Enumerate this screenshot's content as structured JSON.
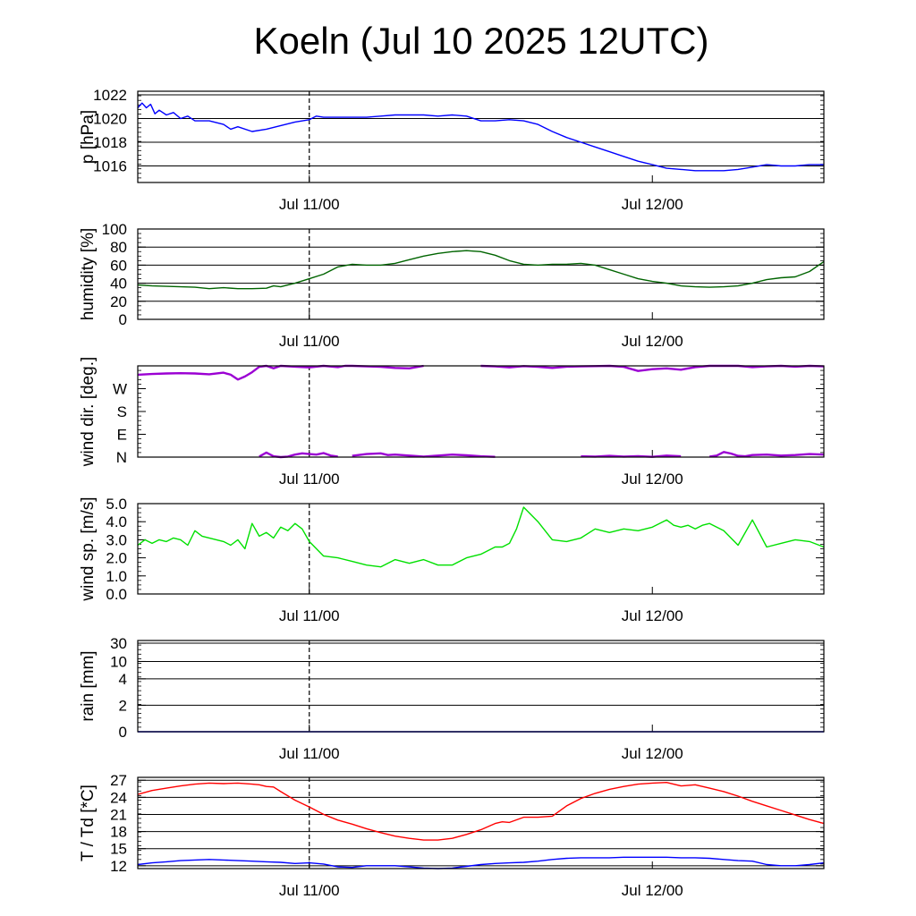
{
  "title": "Koeln (Jul 10 2025 12UTC)",
  "x_ticks": [
    "Jul 11/00",
    "Jul 12/00"
  ],
  "chart_data": [
    {
      "type": "line",
      "id": "pressure",
      "ylabel": "p [hPa]",
      "ylim": [
        1014.6,
        1022.3
      ],
      "yticks": [
        1016,
        1018,
        1020,
        1022
      ],
      "ytick_labels": [
        "1016",
        "1018",
        "1020",
        "1022"
      ],
      "grid": true,
      "xlim_hours": [
        12,
        60
      ],
      "xtick_hours": [
        24,
        48
      ],
      "xtick_labels": [
        "Jul 11/00",
        "Jul 12/00"
      ],
      "series": [
        {
          "color": "#0000ff",
          "x": [
            12,
            12.3,
            12.6,
            12.9,
            13.2,
            13.5,
            14,
            14.5,
            15,
            15.5,
            16,
            17,
            18,
            18.5,
            19,
            20,
            21,
            22,
            23,
            24,
            24.5,
            25,
            26,
            27,
            28,
            29,
            30,
            31,
            32,
            33,
            34,
            35,
            36,
            37,
            38,
            39,
            40,
            41,
            42,
            43,
            44,
            45,
            46,
            47,
            48,
            49,
            50,
            51,
            52,
            53,
            54,
            55,
            56,
            57,
            58,
            59,
            60
          ],
          "y": [
            1020.9,
            1021.3,
            1020.9,
            1021.2,
            1020.4,
            1020.7,
            1020.3,
            1020.5,
            1020.0,
            1020.2,
            1019.8,
            1019.8,
            1019.5,
            1019.1,
            1019.3,
            1018.9,
            1019.1,
            1019.4,
            1019.7,
            1019.9,
            1020.2,
            1020.1,
            1020.1,
            1020.1,
            1020.1,
            1020.2,
            1020.3,
            1020.3,
            1020.3,
            1020.2,
            1020.3,
            1020.2,
            1019.8,
            1019.8,
            1019.9,
            1019.8,
            1019.5,
            1018.9,
            1018.4,
            1018.0,
            1017.6,
            1017.2,
            1016.8,
            1016.4,
            1016.1,
            1015.8,
            1015.7,
            1015.6,
            1015.6,
            1015.6,
            1015.7,
            1015.9,
            1016.1,
            1016.0,
            1016.0,
            1016.1,
            1016.1
          ]
        }
      ]
    },
    {
      "type": "line",
      "id": "humidity",
      "ylabel": "humidity [%]",
      "ylim": [
        0,
        100
      ],
      "yticks": [
        0,
        20,
        40,
        60,
        80,
        100
      ],
      "ytick_labels": [
        "0",
        "20",
        "40",
        "60",
        "80",
        "100"
      ],
      "grid": true,
      "xlim_hours": [
        12,
        60
      ],
      "xtick_hours": [
        24,
        48
      ],
      "xtick_labels": [
        "Jul 11/00",
        "Jul 12/00"
      ],
      "series": [
        {
          "color": "#006400",
          "x": [
            12,
            13,
            14,
            15,
            16,
            17,
            18,
            19,
            20,
            21,
            21.5,
            22,
            23,
            24,
            25,
            26,
            27,
            28,
            29,
            30,
            31,
            32,
            33,
            34,
            35,
            36,
            37,
            38,
            39,
            40,
            41,
            42,
            43,
            44,
            45,
            46,
            47,
            48,
            49,
            50,
            51,
            52,
            53,
            54,
            55,
            56,
            57,
            58,
            59,
            60
          ],
          "y": [
            38,
            37,
            36.5,
            36,
            35.5,
            34,
            35,
            34,
            34,
            34.5,
            37,
            36,
            40,
            45,
            50,
            58,
            61,
            60,
            60,
            62,
            66,
            70,
            73,
            75,
            76,
            75,
            71,
            65,
            61,
            60,
            61,
            61,
            62,
            60,
            55,
            50,
            45,
            42,
            40,
            37,
            36,
            35.5,
            36,
            37,
            40,
            44,
            46,
            47,
            53,
            64
          ]
        }
      ]
    },
    {
      "type": "scatter",
      "id": "wind_direction",
      "ylabel": "wind dir. [deg.]",
      "ylim": [
        0,
        360
      ],
      "yticks": [
        0,
        90,
        180,
        270
      ],
      "ytick_labels": [
        "N",
        "E",
        "S",
        "W"
      ],
      "grid": false,
      "xlim_hours": [
        12,
        60
      ],
      "xtick_hours": [
        24,
        48
      ],
      "xtick_labels": [
        "Jul 11/00",
        "Jul 12/00"
      ],
      "series": [
        {
          "color": "#9b00d3",
          "segments": [
            {
              "x": [
                12,
                13,
                14,
                15,
                16,
                17,
                18,
                18.5,
                19,
                19.5,
                20,
                20.5,
                21,
                21.5,
                22,
                23,
                24,
                25,
                26,
                26.5,
                27,
                28,
                29,
                30,
                31,
                32
              ],
              "y": [
                325,
                328,
                330,
                331,
                330,
                327,
                333,
                325,
                306,
                318,
                335,
                356,
                360,
                350,
                360,
                357,
                354,
                360,
                355,
                362,
                360,
                358,
                356,
                352,
                350,
                360
              ]
            },
            {
              "x": [
                20.5,
                21,
                21.5,
                22,
                22.5,
                23,
                23.5,
                24,
                24.5,
                25,
                25.5,
                26
              ],
              "y": [
                2,
                18,
                3,
                0,
                2,
                10,
                15,
                12,
                10,
                16,
                6,
                2
              ]
            },
            {
              "x": [
                27,
                28,
                29,
                29.5,
                30,
                31,
                32,
                33,
                34,
                35,
                36,
                37
              ],
              "y": [
                5,
                12,
                15,
                8,
                10,
                6,
                2,
                6,
                10,
                7,
                3,
                1
              ]
            },
            {
              "x": [
                36,
                37,
                38,
                39,
                40,
                41,
                42,
                43,
                44,
                45,
                46,
                47,
                48,
                49,
                50,
                51,
                52,
                53,
                54,
                55,
                56,
                57,
                58,
                59,
                60
              ],
              "y": [
                360,
                358,
                354,
                359,
                356,
                352,
                357,
                358,
                359,
                360,
                356,
                340,
                347,
                350,
                345,
                355,
                360,
                360,
                360,
                355,
                358,
                360,
                357,
                360,
                358
              ]
            },
            {
              "x": [
                43,
                44,
                45,
                46,
                47,
                48,
                49,
                50
              ],
              "y": [
                3,
                2,
                5,
                2,
                4,
                1,
                6,
                3
              ]
            },
            {
              "x": [
                52,
                52.5,
                53,
                53.5,
                54,
                54.5,
                55,
                56,
                57,
                58,
                59,
                60
              ],
              "y": [
                2,
                6,
                20,
                14,
                5,
                3,
                8,
                10,
                6,
                8,
                12,
                10
              ]
            }
          ]
        }
      ]
    },
    {
      "type": "line",
      "id": "wind_speed",
      "ylabel": "wind sp. [m/s]",
      "ylim": [
        0,
        5
      ],
      "yticks": [
        0,
        1,
        2,
        3,
        4,
        5
      ],
      "ytick_labels": [
        "0.0",
        "1.0",
        "2.0",
        "3.0",
        "4.0",
        "5.0"
      ],
      "grid": false,
      "xlim_hours": [
        12,
        60
      ],
      "xtick_hours": [
        24,
        48
      ],
      "xtick_labels": [
        "Jul 11/00",
        "Jul 12/00"
      ],
      "series": [
        {
          "color": "#00e000",
          "x": [
            12,
            12.5,
            13,
            13.5,
            14,
            14.5,
            15,
            15.5,
            16,
            16.5,
            17,
            17.5,
            18,
            18.5,
            19,
            19.5,
            20,
            20.5,
            21,
            21.5,
            22,
            22.5,
            23,
            23.5,
            24,
            25,
            26,
            27,
            28,
            29,
            30,
            31,
            32,
            33,
            34,
            35,
            36,
            37,
            37.5,
            38,
            38.5,
            39,
            40,
            41,
            42,
            43,
            44,
            45,
            46,
            47,
            48,
            49,
            49.5,
            50,
            50.5,
            51,
            51.5,
            52,
            53,
            54,
            55,
            56,
            57,
            58,
            59,
            60
          ],
          "y": [
            2.7,
            3.0,
            2.8,
            3.0,
            2.9,
            3.1,
            3.0,
            2.7,
            3.5,
            3.2,
            3.1,
            3.0,
            2.9,
            2.7,
            3.0,
            2.5,
            3.9,
            3.2,
            3.4,
            3.1,
            3.7,
            3.5,
            3.9,
            3.6,
            2.9,
            2.1,
            2.0,
            1.8,
            1.6,
            1.5,
            1.9,
            1.7,
            1.9,
            1.6,
            1.6,
            2.0,
            2.2,
            2.6,
            2.6,
            2.8,
            3.6,
            4.8,
            4.0,
            3.0,
            2.9,
            3.1,
            3.6,
            3.4,
            3.6,
            3.5,
            3.7,
            4.1,
            3.8,
            3.7,
            3.8,
            3.6,
            3.8,
            3.9,
            3.5,
            2.7,
            4.1,
            2.6,
            2.8,
            3.0,
            2.9,
            2.6
          ]
        }
      ]
    },
    {
      "type": "line",
      "id": "rain",
      "ylabel": "rain [mm]",
      "ylim": [
        0,
        30
      ],
      "yticks": [
        0,
        2,
        4,
        10,
        30
      ],
      "ytick_labels": [
        "0",
        "2",
        "4",
        "10",
        "30"
      ],
      "grid": true,
      "xlim_hours": [
        12,
        60
      ],
      "xtick_hours": [
        24,
        48
      ],
      "xtick_labels": [
        "Jul 11/00",
        "Jul 12/00"
      ],
      "series": [
        {
          "color": "#0000ff",
          "x": [
            12,
            60
          ],
          "y": [
            0,
            0
          ]
        }
      ]
    },
    {
      "type": "line",
      "id": "temperature",
      "ylabel": "T / Td [*C]",
      "ylim": [
        11.5,
        27.5
      ],
      "yticks": [
        12,
        15,
        18,
        21,
        24,
        27
      ],
      "ytick_labels": [
        "12",
        "15",
        "18",
        "21",
        "24",
        "27"
      ],
      "grid": true,
      "xlim_hours": [
        12,
        60
      ],
      "xtick_hours": [
        24,
        48
      ],
      "xtick_labels": [
        "Jul 11/00",
        "Jul 12/00"
      ],
      "series": [
        {
          "color": "#ff0000",
          "x": [
            12,
            13,
            14,
            15,
            16,
            17,
            18,
            19,
            20,
            20.5,
            21,
            21.5,
            22,
            23,
            24,
            25,
            26,
            27,
            28,
            29,
            30,
            31,
            32,
            33,
            34,
            35,
            36,
            37,
            37.5,
            38,
            39,
            40,
            41,
            42,
            43,
            44,
            45,
            46,
            47,
            48,
            49,
            50,
            51,
            52,
            53,
            54,
            55,
            56,
            57,
            58,
            59,
            60
          ],
          "y": [
            24.5,
            25.2,
            25.6,
            26.0,
            26.3,
            26.5,
            26.4,
            26.5,
            26.3,
            26.2,
            25.9,
            25.8,
            25.0,
            23.5,
            22.3,
            21.0,
            20.0,
            19.3,
            18.5,
            17.8,
            17.2,
            16.8,
            16.5,
            16.5,
            16.8,
            17.5,
            18.3,
            19.4,
            19.7,
            19.6,
            20.5,
            20.5,
            20.7,
            22.5,
            23.8,
            24.7,
            25.4,
            25.9,
            26.3,
            26.5,
            26.6,
            26.0,
            26.2,
            25.6,
            25.0,
            24.2,
            23.3,
            22.5,
            21.7,
            20.9,
            20.1,
            19.4
          ]
        },
        {
          "color": "#0000ff",
          "x": [
            12,
            13,
            14,
            15,
            16,
            17,
            18,
            19,
            20,
            21,
            22,
            23,
            24,
            25,
            26,
            27,
            28,
            29,
            30,
            31,
            32,
            33,
            34,
            35,
            36,
            37,
            38,
            39,
            40,
            41,
            42,
            43,
            44,
            45,
            46,
            47,
            48,
            49,
            50,
            51,
            52,
            53,
            54,
            55,
            56,
            57,
            58,
            59,
            60
          ],
          "y": [
            12.2,
            12.5,
            12.7,
            12.9,
            13.0,
            13.1,
            13.0,
            12.9,
            12.8,
            12.7,
            12.6,
            12.4,
            12.5,
            12.3,
            11.8,
            11.7,
            12.0,
            12.0,
            12.0,
            11.8,
            11.6,
            11.5,
            11.6,
            11.9,
            12.2,
            12.4,
            12.5,
            12.6,
            12.8,
            13.1,
            13.3,
            13.4,
            13.4,
            13.4,
            13.5,
            13.5,
            13.5,
            13.5,
            13.4,
            13.4,
            13.3,
            13.1,
            12.9,
            12.8,
            12.2,
            12.0,
            12.0,
            12.2,
            12.5
          ]
        }
      ]
    }
  ]
}
